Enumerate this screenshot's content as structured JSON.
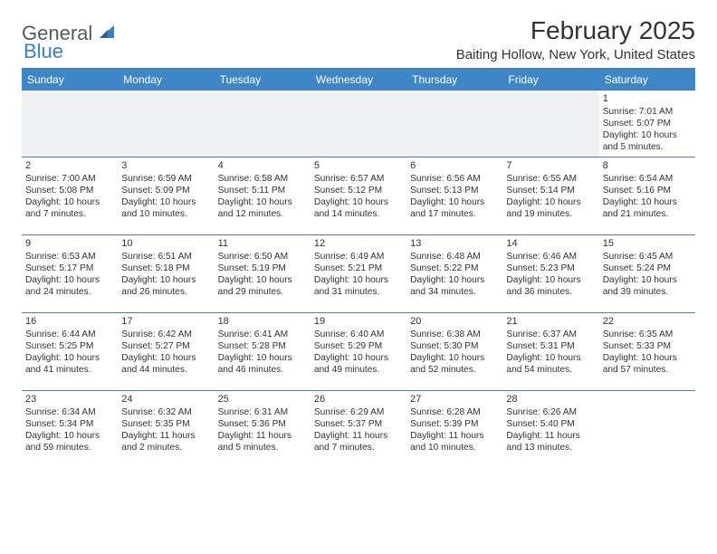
{
  "brand": {
    "word1": "General",
    "word2": "Blue"
  },
  "title": "February 2025",
  "location": "Baiting Hollow, New York, United States",
  "colors": {
    "header_bar": "#3e86c6",
    "rule": "#4a7fb2",
    "shade": "#eef0f2",
    "logo_gray": "#555a61",
    "logo_blue": "#3a7fbf"
  },
  "weekdays": [
    "Sunday",
    "Monday",
    "Tuesday",
    "Wednesday",
    "Thursday",
    "Friday",
    "Saturday"
  ],
  "weeks": [
    [
      {
        "day": "",
        "shaded": true
      },
      {
        "day": "",
        "shaded": true
      },
      {
        "day": "",
        "shaded": true
      },
      {
        "day": "",
        "shaded": true
      },
      {
        "day": "",
        "shaded": true
      },
      {
        "day": "",
        "shaded": true
      },
      {
        "day": "1",
        "sunrise": "Sunrise: 7:01 AM",
        "sunset": "Sunset: 5:07 PM",
        "daylight": "Daylight: 10 hours and 5 minutes."
      }
    ],
    [
      {
        "day": "2",
        "sunrise": "Sunrise: 7:00 AM",
        "sunset": "Sunset: 5:08 PM",
        "daylight": "Daylight: 10 hours and 7 minutes."
      },
      {
        "day": "3",
        "sunrise": "Sunrise: 6:59 AM",
        "sunset": "Sunset: 5:09 PM",
        "daylight": "Daylight: 10 hours and 10 minutes."
      },
      {
        "day": "4",
        "sunrise": "Sunrise: 6:58 AM",
        "sunset": "Sunset: 5:11 PM",
        "daylight": "Daylight: 10 hours and 12 minutes."
      },
      {
        "day": "5",
        "sunrise": "Sunrise: 6:57 AM",
        "sunset": "Sunset: 5:12 PM",
        "daylight": "Daylight: 10 hours and 14 minutes."
      },
      {
        "day": "6",
        "sunrise": "Sunrise: 6:56 AM",
        "sunset": "Sunset: 5:13 PM",
        "daylight": "Daylight: 10 hours and 17 minutes."
      },
      {
        "day": "7",
        "sunrise": "Sunrise: 6:55 AM",
        "sunset": "Sunset: 5:14 PM",
        "daylight": "Daylight: 10 hours and 19 minutes."
      },
      {
        "day": "8",
        "sunrise": "Sunrise: 6:54 AM",
        "sunset": "Sunset: 5:16 PM",
        "daylight": "Daylight: 10 hours and 21 minutes."
      }
    ],
    [
      {
        "day": "9",
        "sunrise": "Sunrise: 6:53 AM",
        "sunset": "Sunset: 5:17 PM",
        "daylight": "Daylight: 10 hours and 24 minutes."
      },
      {
        "day": "10",
        "sunrise": "Sunrise: 6:51 AM",
        "sunset": "Sunset: 5:18 PM",
        "daylight": "Daylight: 10 hours and 26 minutes."
      },
      {
        "day": "11",
        "sunrise": "Sunrise: 6:50 AM",
        "sunset": "Sunset: 5:19 PM",
        "daylight": "Daylight: 10 hours and 29 minutes."
      },
      {
        "day": "12",
        "sunrise": "Sunrise: 6:49 AM",
        "sunset": "Sunset: 5:21 PM",
        "daylight": "Daylight: 10 hours and 31 minutes."
      },
      {
        "day": "13",
        "sunrise": "Sunrise: 6:48 AM",
        "sunset": "Sunset: 5:22 PM",
        "daylight": "Daylight: 10 hours and 34 minutes."
      },
      {
        "day": "14",
        "sunrise": "Sunrise: 6:46 AM",
        "sunset": "Sunset: 5:23 PM",
        "daylight": "Daylight: 10 hours and 36 minutes."
      },
      {
        "day": "15",
        "sunrise": "Sunrise: 6:45 AM",
        "sunset": "Sunset: 5:24 PM",
        "daylight": "Daylight: 10 hours and 39 minutes."
      }
    ],
    [
      {
        "day": "16",
        "sunrise": "Sunrise: 6:44 AM",
        "sunset": "Sunset: 5:25 PM",
        "daylight": "Daylight: 10 hours and 41 minutes."
      },
      {
        "day": "17",
        "sunrise": "Sunrise: 6:42 AM",
        "sunset": "Sunset: 5:27 PM",
        "daylight": "Daylight: 10 hours and 44 minutes."
      },
      {
        "day": "18",
        "sunrise": "Sunrise: 6:41 AM",
        "sunset": "Sunset: 5:28 PM",
        "daylight": "Daylight: 10 hours and 46 minutes."
      },
      {
        "day": "19",
        "sunrise": "Sunrise: 6:40 AM",
        "sunset": "Sunset: 5:29 PM",
        "daylight": "Daylight: 10 hours and 49 minutes."
      },
      {
        "day": "20",
        "sunrise": "Sunrise: 6:38 AM",
        "sunset": "Sunset: 5:30 PM",
        "daylight": "Daylight: 10 hours and 52 minutes."
      },
      {
        "day": "21",
        "sunrise": "Sunrise: 6:37 AM",
        "sunset": "Sunset: 5:31 PM",
        "daylight": "Daylight: 10 hours and 54 minutes."
      },
      {
        "day": "22",
        "sunrise": "Sunrise: 6:35 AM",
        "sunset": "Sunset: 5:33 PM",
        "daylight": "Daylight: 10 hours and 57 minutes."
      }
    ],
    [
      {
        "day": "23",
        "sunrise": "Sunrise: 6:34 AM",
        "sunset": "Sunset: 5:34 PM",
        "daylight": "Daylight: 10 hours and 59 minutes."
      },
      {
        "day": "24",
        "sunrise": "Sunrise: 6:32 AM",
        "sunset": "Sunset: 5:35 PM",
        "daylight": "Daylight: 11 hours and 2 minutes."
      },
      {
        "day": "25",
        "sunrise": "Sunrise: 6:31 AM",
        "sunset": "Sunset: 5:36 PM",
        "daylight": "Daylight: 11 hours and 5 minutes."
      },
      {
        "day": "26",
        "sunrise": "Sunrise: 6:29 AM",
        "sunset": "Sunset: 5:37 PM",
        "daylight": "Daylight: 11 hours and 7 minutes."
      },
      {
        "day": "27",
        "sunrise": "Sunrise: 6:28 AM",
        "sunset": "Sunset: 5:39 PM",
        "daylight": "Daylight: 11 hours and 10 minutes."
      },
      {
        "day": "28",
        "sunrise": "Sunrise: 6:26 AM",
        "sunset": "Sunset: 5:40 PM",
        "daylight": "Daylight: 11 hours and 13 minutes."
      },
      {
        "day": ""
      }
    ]
  ]
}
